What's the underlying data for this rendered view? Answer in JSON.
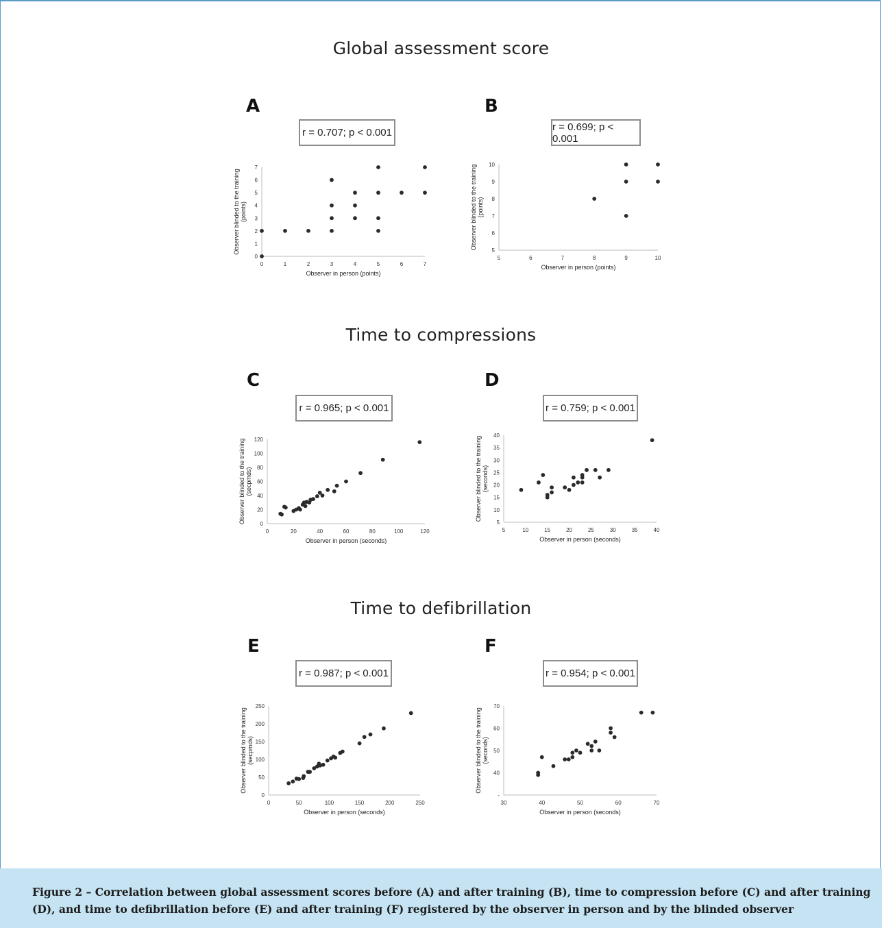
{
  "sections": [
    {
      "title": "Global assessment score"
    },
    {
      "title": "Time to compressions"
    },
    {
      "title": "Time to defibrillation"
    }
  ],
  "caption": "Figure 2 – Correlation between global assessment scores before (A) and after training (B), time to compression before (C) and after training (D), and time to defibrillation before (E) and after training (F) registered by the observer in person and by the blinded observer",
  "chart_data": [
    {
      "panel": "A",
      "type": "scatter",
      "annotation": "r = 0.707; p < 0.001",
      "xlabel": "Observer in person (points)",
      "ylabel": [
        "Observer blinded to the training",
        "(points)"
      ],
      "xlim": [
        0,
        7
      ],
      "ylim": [
        0,
        7
      ],
      "xticks": [
        "0",
        "1",
        "2",
        "3",
        "4",
        "5",
        "6",
        "7"
      ],
      "yticks": [
        "0",
        "1",
        "2",
        "3",
        "4",
        "5",
        "6",
        "7"
      ],
      "points": [
        [
          0,
          0
        ],
        [
          0,
          2
        ],
        [
          1,
          2
        ],
        [
          2,
          2
        ],
        [
          3,
          2
        ],
        [
          3,
          3
        ],
        [
          3,
          4
        ],
        [
          3,
          6
        ],
        [
          4,
          3
        ],
        [
          4,
          4
        ],
        [
          4,
          5
        ],
        [
          5,
          2
        ],
        [
          5,
          3
        ],
        [
          5,
          5
        ],
        [
          5,
          7
        ],
        [
          6,
          5
        ],
        [
          7,
          5
        ],
        [
          7,
          7
        ]
      ]
    },
    {
      "panel": "B",
      "type": "scatter",
      "annotation": "r = 0.699; p < 0.001",
      "xlabel": "Observer in person (points)",
      "ylabel": [
        "Observer blinded to the training",
        "(points)"
      ],
      "xlim": [
        5,
        10
      ],
      "ylim": [
        5,
        10
      ],
      "xticks": [
        "5",
        "6",
        "7",
        "8",
        "9",
        "10"
      ],
      "yticks": [
        "5",
        "6",
        "7",
        "8",
        "9",
        "10"
      ],
      "points": [
        [
          8,
          8
        ],
        [
          9,
          7
        ],
        [
          9,
          9
        ],
        [
          9,
          10
        ],
        [
          10,
          9
        ],
        [
          10,
          10
        ]
      ]
    },
    {
      "panel": "C",
      "type": "scatter",
      "annotation": "r = 0.965; p < 0.001",
      "xlabel": "Observer in person (seconds)",
      "ylabel": [
        "Observer blinded to the training",
        "(secpmds)"
      ],
      "xlim": [
        0,
        120
      ],
      "ylim": [
        0,
        120
      ],
      "xticks": [
        "0",
        "20",
        "40",
        "60",
        "80",
        "100",
        "120"
      ],
      "yticks": [
        "0",
        "20",
        "40",
        "60",
        "80",
        "100",
        "120"
      ],
      "points": [
        [
          10,
          14
        ],
        [
          11,
          13
        ],
        [
          13,
          24
        ],
        [
          14,
          23
        ],
        [
          20,
          18
        ],
        [
          22,
          20
        ],
        [
          24,
          22
        ],
        [
          25,
          20
        ],
        [
          27,
          27
        ],
        [
          28,
          30
        ],
        [
          29,
          25
        ],
        [
          30,
          31
        ],
        [
          32,
          30
        ],
        [
          33,
          34
        ],
        [
          35,
          35
        ],
        [
          38,
          39
        ],
        [
          40,
          44
        ],
        [
          42,
          40
        ],
        [
          46,
          48
        ],
        [
          51,
          46
        ],
        [
          53,
          54
        ],
        [
          60,
          60
        ],
        [
          71,
          72
        ],
        [
          88,
          91
        ],
        [
          116,
          116
        ]
      ]
    },
    {
      "panel": "D",
      "type": "scatter",
      "annotation": "r = 0.759; p < 0.001",
      "xlabel": "Observer in person (seconds)",
      "ylabel": [
        "Observer blinded to the training",
        "(seconds)"
      ],
      "xlim": [
        5,
        40
      ],
      "ylim": [
        5,
        40
      ],
      "xticks": [
        "5",
        "10",
        "15",
        "20",
        "25",
        "30",
        "35",
        "40"
      ],
      "yticks": [
        "5",
        "10",
        "15",
        "20",
        "25",
        "30",
        "35",
        "40"
      ],
      "points": [
        [
          9,
          18
        ],
        [
          13,
          21
        ],
        [
          14,
          24
        ],
        [
          15,
          16
        ],
        [
          15,
          15
        ],
        [
          16,
          17
        ],
        [
          16,
          19
        ],
        [
          19,
          19
        ],
        [
          20,
          18
        ],
        [
          21,
          20
        ],
        [
          21,
          23
        ],
        [
          22,
          21
        ],
        [
          23,
          21
        ],
        [
          23,
          23
        ],
        [
          23,
          24
        ],
        [
          24,
          26
        ],
        [
          26,
          26
        ],
        [
          27,
          23
        ],
        [
          29,
          26
        ],
        [
          39,
          38
        ]
      ]
    },
    {
      "panel": "E",
      "type": "scatter",
      "annotation": "r = 0.987; p < 0.001",
      "xlabel": "Observer in person (seconds)",
      "ylabel": [
        "Observer blinded to the training",
        "(secpmds)"
      ],
      "xlim": [
        0,
        250
      ],
      "ylim": [
        0,
        250
      ],
      "xticks": [
        "0",
        "50",
        "100",
        "150",
        "200",
        "250"
      ],
      "yticks": [
        "0",
        "50",
        "100",
        "150",
        "200",
        "250"
      ],
      "points": [
        [
          33,
          33
        ],
        [
          40,
          38
        ],
        [
          46,
          46
        ],
        [
          50,
          45
        ],
        [
          57,
          48
        ],
        [
          58,
          53
        ],
        [
          65,
          65
        ],
        [
          68,
          65
        ],
        [
          75,
          75
        ],
        [
          80,
          80
        ],
        [
          83,
          88
        ],
        [
          85,
          83
        ],
        [
          90,
          85
        ],
        [
          97,
          97
        ],
        [
          103,
          103
        ],
        [
          107,
          108
        ],
        [
          110,
          105
        ],
        [
          118,
          118
        ],
        [
          122,
          122
        ],
        [
          150,
          145
        ],
        [
          158,
          163
        ],
        [
          168,
          170
        ],
        [
          190,
          187
        ],
        [
          235,
          230
        ]
      ]
    },
    {
      "panel": "F",
      "type": "scatter",
      "annotation": "r = 0.954; p < 0.001",
      "xlabel": "Observer in person (seconds)",
      "ylabel": [
        "Observer blinded to the training",
        "(seconds)"
      ],
      "xlim": [
        30,
        70
      ],
      "ylim": [
        30,
        70
      ],
      "xticks": [
        "30",
        "40",
        "50",
        "60",
        "70"
      ],
      "yticks": [
        "-",
        "40",
        "50",
        "60",
        "70"
      ],
      "points": [
        [
          39,
          40
        ],
        [
          39,
          39
        ],
        [
          40,
          47
        ],
        [
          43,
          43
        ],
        [
          46,
          46
        ],
        [
          47,
          46
        ],
        [
          48,
          47
        ],
        [
          48,
          49
        ],
        [
          49,
          50
        ],
        [
          50,
          49
        ],
        [
          52,
          53
        ],
        [
          53,
          50
        ],
        [
          53,
          52
        ],
        [
          54,
          54
        ],
        [
          55,
          50
        ],
        [
          58,
          60
        ],
        [
          58,
          58
        ],
        [
          59,
          56
        ],
        [
          66,
          67
        ],
        [
          69,
          67
        ]
      ]
    }
  ]
}
